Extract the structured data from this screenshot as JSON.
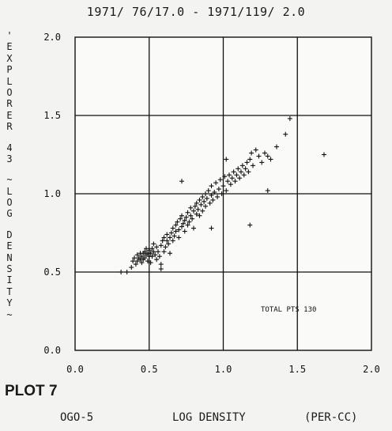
{
  "header": {
    "time_range": "1971/ 76/17.0 - 1971/119/ 2.0"
  },
  "vertical_label": "'EXPLORER 43 ~LOG DENSITY~",
  "plot_label": "PLOT 7",
  "footer": {
    "left": "OGO-5",
    "middle": "LOG DENSITY",
    "right": "(PER-CC)"
  },
  "annotation": "TOTAL PTS  130",
  "chart_data": {
    "type": "scatter",
    "title": "1971/ 76/17.0 - 1971/119/ 2.0",
    "xlabel": "LOG DENSITY (PER-CC)",
    "ylabel": "EXPLORER 43 LOG DENSITY",
    "xlim": [
      0.0,
      2.0
    ],
    "ylim": [
      0.0,
      2.0
    ],
    "xticks": [
      "0.0",
      "0.5",
      "1.0",
      "1.5",
      "2.0"
    ],
    "yticks": [
      "0.0",
      "0.5",
      "1.0",
      "1.5",
      "2.0"
    ],
    "grid": true,
    "total_points": 130,
    "points": [
      [
        0.31,
        0.5
      ],
      [
        0.35,
        0.5
      ],
      [
        0.38,
        0.53
      ],
      [
        0.39,
        0.57
      ],
      [
        0.4,
        0.59
      ],
      [
        0.41,
        0.55
      ],
      [
        0.42,
        0.57
      ],
      [
        0.42,
        0.61
      ],
      [
        0.43,
        0.59
      ],
      [
        0.44,
        0.58
      ],
      [
        0.44,
        0.62
      ],
      [
        0.45,
        0.56
      ],
      [
        0.45,
        0.6
      ],
      [
        0.46,
        0.58
      ],
      [
        0.46,
        0.62
      ],
      [
        0.47,
        0.63
      ],
      [
        0.47,
        0.59
      ],
      [
        0.48,
        0.61
      ],
      [
        0.48,
        0.65
      ],
      [
        0.49,
        0.57
      ],
      [
        0.49,
        0.62
      ],
      [
        0.5,
        0.6
      ],
      [
        0.5,
        0.64
      ],
      [
        0.51,
        0.56
      ],
      [
        0.51,
        0.62
      ],
      [
        0.52,
        0.65
      ],
      [
        0.52,
        0.6
      ],
      [
        0.53,
        0.63
      ],
      [
        0.53,
        0.68
      ],
      [
        0.54,
        0.61
      ],
      [
        0.55,
        0.58
      ],
      [
        0.55,
        0.66
      ],
      [
        0.56,
        0.63
      ],
      [
        0.57,
        0.6
      ],
      [
        0.58,
        0.55
      ],
      [
        0.58,
        0.67
      ],
      [
        0.59,
        0.7
      ],
      [
        0.6,
        0.63
      ],
      [
        0.6,
        0.72
      ],
      [
        0.61,
        0.66
      ],
      [
        0.62,
        0.7
      ],
      [
        0.62,
        0.74
      ],
      [
        0.63,
        0.68
      ],
      [
        0.64,
        0.72
      ],
      [
        0.64,
        0.62
      ],
      [
        0.65,
        0.75
      ],
      [
        0.66,
        0.7
      ],
      [
        0.66,
        0.78
      ],
      [
        0.67,
        0.73
      ],
      [
        0.68,
        0.8
      ],
      [
        0.68,
        0.76
      ],
      [
        0.69,
        0.82
      ],
      [
        0.7,
        0.77
      ],
      [
        0.7,
        0.72
      ],
      [
        0.71,
        0.84
      ],
      [
        0.72,
        0.79
      ],
      [
        0.72,
        0.86
      ],
      [
        0.73,
        0.81
      ],
      [
        0.74,
        0.83
      ],
      [
        0.74,
        0.76
      ],
      [
        0.75,
        0.85
      ],
      [
        0.76,
        0.88
      ],
      [
        0.76,
        0.8
      ],
      [
        0.77,
        0.82
      ],
      [
        0.78,
        0.86
      ],
      [
        0.78,
        0.91
      ],
      [
        0.79,
        0.84
      ],
      [
        0.8,
        0.89
      ],
      [
        0.8,
        0.78
      ],
      [
        0.81,
        0.92
      ],
      [
        0.82,
        0.87
      ],
      [
        0.82,
        0.94
      ],
      [
        0.83,
        0.9
      ],
      [
        0.84,
        0.96
      ],
      [
        0.84,
        0.86
      ],
      [
        0.85,
        0.93
      ],
      [
        0.86,
        0.98
      ],
      [
        0.86,
        0.89
      ],
      [
        0.87,
        0.95
      ],
      [
        0.88,
        1.0
      ],
      [
        0.88,
        0.92
      ],
      [
        0.89,
        0.97
      ],
      [
        0.9,
        1.02
      ],
      [
        0.91,
        0.94
      ],
      [
        0.92,
        0.99
      ],
      [
        0.92,
        1.05
      ],
      [
        0.93,
        0.96
      ],
      [
        0.94,
        1.01
      ],
      [
        0.95,
        1.07
      ],
      [
        0.96,
        0.98
      ],
      [
        0.97,
        1.03
      ],
      [
        0.98,
        1.09
      ],
      [
        0.99,
        1.0
      ],
      [
        1.0,
        1.05
      ],
      [
        1.01,
        1.11
      ],
      [
        1.02,
        1.02
      ],
      [
        1.03,
        1.08
      ],
      [
        1.04,
        1.12
      ],
      [
        1.05,
        1.06
      ],
      [
        1.06,
        1.1
      ],
      [
        1.07,
        1.14
      ],
      [
        1.08,
        1.08
      ],
      [
        1.09,
        1.12
      ],
      [
        1.1,
        1.16
      ],
      [
        1.11,
        1.1
      ],
      [
        1.12,
        1.14
      ],
      [
        1.13,
        1.18
      ],
      [
        1.14,
        1.12
      ],
      [
        1.15,
        1.16
      ],
      [
        1.16,
        1.2
      ],
      [
        1.17,
        1.14
      ],
      [
        1.18,
        1.22
      ],
      [
        1.19,
        1.26
      ],
      [
        1.2,
        1.18
      ],
      [
        1.22,
        1.28
      ],
      [
        1.24,
        1.24
      ],
      [
        1.26,
        1.2
      ],
      [
        1.28,
        1.26
      ],
      [
        1.3,
        1.24
      ],
      [
        1.32,
        1.22
      ],
      [
        1.36,
        1.3
      ],
      [
        1.42,
        1.38
      ],
      [
        1.45,
        1.48
      ],
      [
        1.68,
        1.25
      ],
      [
        1.3,
        1.02
      ],
      [
        1.18,
        0.8
      ],
      [
        0.92,
        0.78
      ],
      [
        0.58,
        0.52
      ],
      [
        0.72,
        1.08
      ],
      [
        1.02,
        1.22
      ]
    ]
  }
}
